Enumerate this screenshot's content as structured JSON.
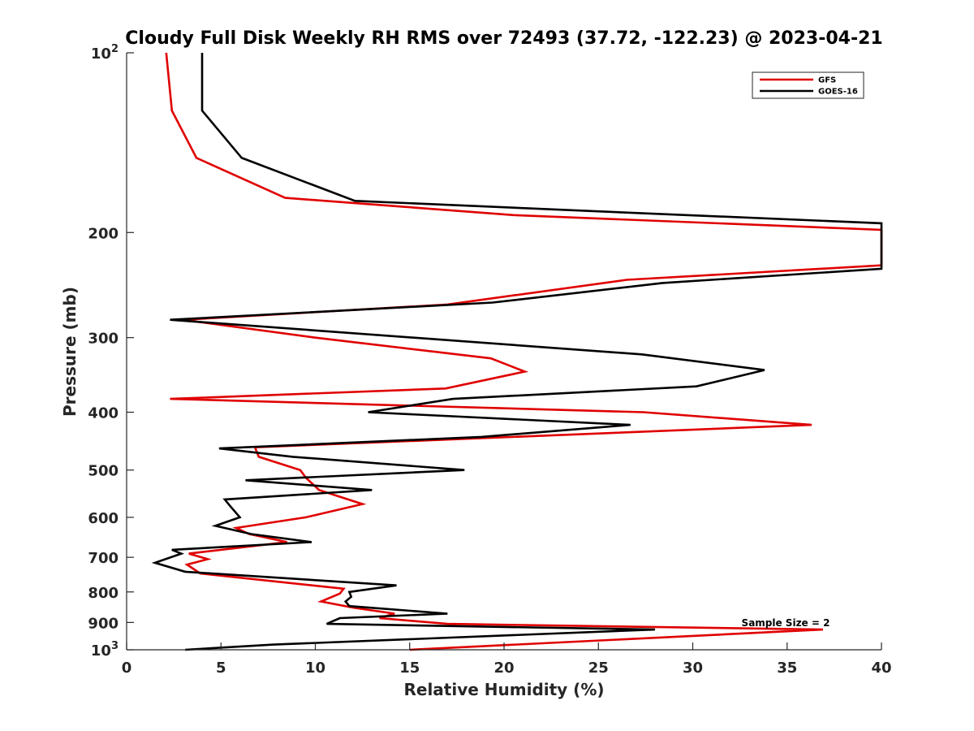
{
  "chart_data": {
    "type": "line",
    "title": "Cloudy Full Disk Weekly RH RMS over 72493 (37.72, -122.23) @ 2023-04-21",
    "xlabel": "Relative Humidity (%)",
    "ylabel": "Pressure (mb)",
    "xlim": [
      0,
      40
    ],
    "ylim": [
      100,
      1000
    ],
    "y_scale": "log",
    "y_reversed": true,
    "x_ticks": [
      "0",
      "5",
      "10",
      "15",
      "20",
      "25",
      "30",
      "35",
      "40"
    ],
    "y_ticks": [
      {
        "value": 100,
        "label": "10",
        "sup": "2"
      },
      {
        "value": 200,
        "label": "200",
        "sup": ""
      },
      {
        "value": 300,
        "label": "300",
        "sup": ""
      },
      {
        "value": 400,
        "label": "400",
        "sup": ""
      },
      {
        "value": 500,
        "label": "500",
        "sup": ""
      },
      {
        "value": 600,
        "label": "600",
        "sup": ""
      },
      {
        "value": 700,
        "label": "700",
        "sup": ""
      },
      {
        "value": 800,
        "label": "800",
        "sup": ""
      },
      {
        "value": 900,
        "label": "900",
        "sup": ""
      },
      {
        "value": 1000,
        "label": "10",
        "sup": "3"
      }
    ],
    "legend_position": "top-right",
    "annotation": "Sample Size = 2",
    "series": [
      {
        "name": "GFS",
        "color": "#e00000",
        "points": [
          [
            2.1,
            100
          ],
          [
            2.4,
            125
          ],
          [
            3.7,
            150
          ],
          [
            8.4,
            175
          ],
          [
            20.5,
            187
          ],
          [
            40.0,
            198
          ],
          [
            40.0,
            227
          ],
          [
            26.5,
            240
          ],
          [
            17.0,
            264
          ],
          [
            3.0,
            280
          ],
          [
            10.0,
            300
          ],
          [
            19.3,
            325
          ],
          [
            21.1,
            342
          ],
          [
            16.9,
            365
          ],
          [
            2.3,
            380
          ],
          [
            27.4,
            400
          ],
          [
            36.3,
            420
          ],
          [
            6.8,
            458
          ],
          [
            7.0,
            475
          ],
          [
            9.2,
            500
          ],
          [
            9.5,
            515
          ],
          [
            10.2,
            540
          ],
          [
            12.5,
            570
          ],
          [
            9.5,
            600
          ],
          [
            5.8,
            625
          ],
          [
            6.5,
            640
          ],
          [
            8.5,
            660
          ],
          [
            3.3,
            690
          ],
          [
            4.3,
            705
          ],
          [
            3.2,
            720
          ],
          [
            3.9,
            745
          ],
          [
            11.5,
            790
          ],
          [
            11.3,
            805
          ],
          [
            10.3,
            830
          ],
          [
            12.0,
            850
          ],
          [
            14.2,
            870
          ],
          [
            13.4,
            885
          ],
          [
            17.0,
            905
          ],
          [
            36.9,
            925
          ],
          [
            15.0,
            1000
          ]
        ]
      },
      {
        "name": "GOES-16",
        "color": "#000000",
        "points": [
          [
            4.0,
            100
          ],
          [
            4.0,
            125
          ],
          [
            6.1,
            150
          ],
          [
            12.1,
            177
          ],
          [
            26.2,
            185
          ],
          [
            40.0,
            193
          ],
          [
            40.0,
            230
          ],
          [
            28.4,
            243
          ],
          [
            19.4,
            262
          ],
          [
            2.3,
            280
          ],
          [
            27.3,
            320
          ],
          [
            33.8,
            340
          ],
          [
            30.2,
            362
          ],
          [
            17.3,
            380
          ],
          [
            12.8,
            400
          ],
          [
            26.7,
            420
          ],
          [
            18.8,
            440
          ],
          [
            4.9,
            460
          ],
          [
            8.8,
            475
          ],
          [
            17.9,
            500
          ],
          [
            6.3,
            520
          ],
          [
            13.0,
            540
          ],
          [
            5.2,
            560
          ],
          [
            5.5,
            575
          ],
          [
            6.0,
            600
          ],
          [
            4.7,
            620
          ],
          [
            6.6,
            640
          ],
          [
            9.8,
            660
          ],
          [
            2.4,
            680
          ],
          [
            2.9,
            690
          ],
          [
            1.5,
            715
          ],
          [
            3.1,
            740
          ],
          [
            14.3,
            780
          ],
          [
            11.8,
            800
          ],
          [
            11.9,
            815
          ],
          [
            11.6,
            830
          ],
          [
            11.8,
            845
          ],
          [
            17.0,
            870
          ],
          [
            11.3,
            885
          ],
          [
            10.6,
            905
          ],
          [
            28.0,
            925
          ],
          [
            7.8,
            980
          ],
          [
            3.1,
            1000
          ]
        ]
      }
    ]
  }
}
